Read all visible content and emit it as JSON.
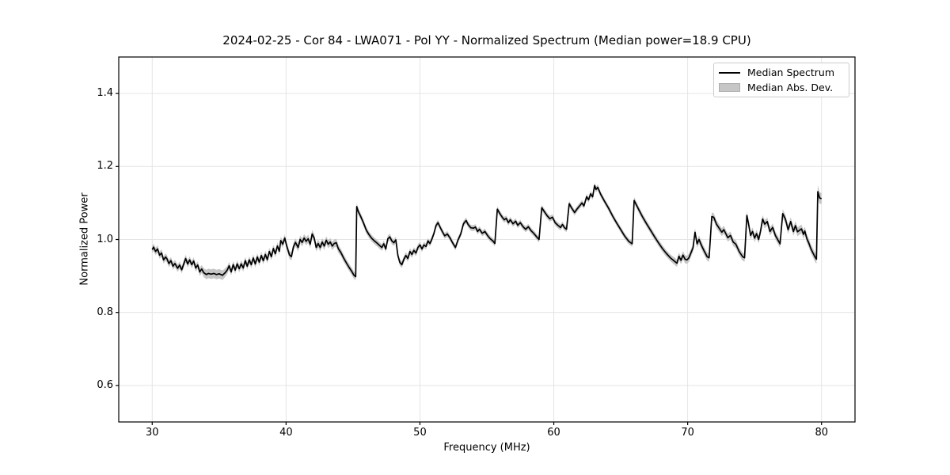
{
  "figure": {
    "title": "2024-02-25 - Cor 84 - LWA071 - Pol YY - Normalized Spectrum (Median power=18.9 CPU)",
    "background": "#ffffff"
  },
  "axes": {
    "xlabel": "Frequency (MHz)",
    "ylabel": "Normalized Power",
    "xticks": [
      30,
      40,
      50,
      60,
      70,
      80
    ],
    "xtick_labels": [
      "30",
      "40",
      "50",
      "60",
      "70",
      "80"
    ],
    "yticks": [
      0.6,
      0.8,
      1.0,
      1.2,
      1.4
    ],
    "ytick_labels": [
      "0.6",
      "0.8",
      "1.0",
      "1.2",
      "1.4"
    ],
    "xlim": [
      27.5,
      82.5
    ],
    "ylim": [
      0.5,
      1.5
    ],
    "grid": true,
    "grid_color": "#e4e4e4",
    "spine_color": "#000000"
  },
  "legend": {
    "position": "upper right",
    "entries": [
      {
        "label": "Median Spectrum",
        "type": "line",
        "color": "#000000"
      },
      {
        "label": "Median Abs. Dev.",
        "type": "patch",
        "color": "#c6c6c6"
      }
    ]
  },
  "chart_data": {
    "type": "line",
    "title": "2024-02-25 - Cor 84 - LWA071 - Pol YY - Normalized Spectrum (Median power=18.9 CPU)",
    "xlabel": "Frequency (MHz)",
    "ylabel": "Normalized Power",
    "xlim": [
      27.5,
      82.5
    ],
    "ylim": [
      0.5,
      1.5
    ],
    "grid": true,
    "legend_position": "upper right",
    "line_color": "#000000",
    "band_color": "#c6c6c6",
    "series_names": [
      "Median Spectrum",
      "Median Abs. Dev."
    ],
    "points_format": [
      "frequency_mhz",
      "normalized_power",
      "median_abs_dev"
    ],
    "points": [
      [
        30.0,
        0.972,
        0.01
      ],
      [
        30.1,
        0.979,
        0.01
      ],
      [
        30.25,
        0.967,
        0.01
      ],
      [
        30.4,
        0.974,
        0.01
      ],
      [
        30.55,
        0.957,
        0.01
      ],
      [
        30.7,
        0.963,
        0.01
      ],
      [
        30.85,
        0.944,
        0.01
      ],
      [
        31.0,
        0.952,
        0.01
      ],
      [
        31.1,
        0.947,
        0.01
      ],
      [
        31.25,
        0.934,
        0.01
      ],
      [
        31.4,
        0.942,
        0.01
      ],
      [
        31.55,
        0.927,
        0.01
      ],
      [
        31.7,
        0.934,
        0.01
      ],
      [
        31.9,
        0.921,
        0.01
      ],
      [
        32.05,
        0.93,
        0.01
      ],
      [
        32.2,
        0.917,
        0.01
      ],
      [
        32.35,
        0.932,
        0.01
      ],
      [
        32.5,
        0.948,
        0.01
      ],
      [
        32.65,
        0.933,
        0.01
      ],
      [
        32.8,
        0.944,
        0.01
      ],
      [
        32.95,
        0.931,
        0.01
      ],
      [
        33.1,
        0.941,
        0.01
      ],
      [
        33.25,
        0.922,
        0.01
      ],
      [
        33.4,
        0.93,
        0.01
      ],
      [
        33.55,
        0.911,
        0.011
      ],
      [
        33.7,
        0.919,
        0.011
      ],
      [
        33.85,
        0.909,
        0.012
      ],
      [
        34.05,
        0.904,
        0.013
      ],
      [
        34.2,
        0.907,
        0.013
      ],
      [
        34.4,
        0.905,
        0.013
      ],
      [
        34.6,
        0.907,
        0.013
      ],
      [
        34.8,
        0.904,
        0.013
      ],
      [
        35.0,
        0.906,
        0.013
      ],
      [
        35.25,
        0.902,
        0.013
      ],
      [
        35.45,
        0.909,
        0.012
      ],
      [
        35.6,
        0.916,
        0.011
      ],
      [
        35.75,
        0.928,
        0.01
      ],
      [
        35.9,
        0.911,
        0.01
      ],
      [
        36.05,
        0.931,
        0.01
      ],
      [
        36.2,
        0.916,
        0.01
      ],
      [
        36.35,
        0.933,
        0.01
      ],
      [
        36.5,
        0.92,
        0.01
      ],
      [
        36.65,
        0.933,
        0.01
      ],
      [
        36.8,
        0.922,
        0.01
      ],
      [
        36.95,
        0.942,
        0.01
      ],
      [
        37.1,
        0.927,
        0.01
      ],
      [
        37.25,
        0.944,
        0.01
      ],
      [
        37.4,
        0.931,
        0.01
      ],
      [
        37.55,
        0.949,
        0.01
      ],
      [
        37.7,
        0.933,
        0.01
      ],
      [
        37.85,
        0.952,
        0.01
      ],
      [
        38.0,
        0.938,
        0.01
      ],
      [
        38.15,
        0.956,
        0.01
      ],
      [
        38.3,
        0.942,
        0.01
      ],
      [
        38.45,
        0.959,
        0.01
      ],
      [
        38.6,
        0.945,
        0.01
      ],
      [
        38.75,
        0.967,
        0.01
      ],
      [
        38.9,
        0.953,
        0.01
      ],
      [
        39.05,
        0.975,
        0.01
      ],
      [
        39.2,
        0.961,
        0.01
      ],
      [
        39.35,
        0.982,
        0.01
      ],
      [
        39.5,
        0.968,
        0.01
      ],
      [
        39.6,
        0.997,
        0.01
      ],
      [
        39.75,
        0.987,
        0.01
      ],
      [
        39.9,
        1.004,
        0.01
      ],
      [
        40.05,
        0.982,
        0.01
      ],
      [
        40.25,
        0.958,
        0.011
      ],
      [
        40.4,
        0.953,
        0.011
      ],
      [
        40.55,
        0.98,
        0.011
      ],
      [
        40.7,
        0.992,
        0.011
      ],
      [
        40.9,
        0.978,
        0.011
      ],
      [
        41.05,
        1.0,
        0.011
      ],
      [
        41.2,
        0.992,
        0.011
      ],
      [
        41.35,
        1.004,
        0.011
      ],
      [
        41.5,
        0.995,
        0.011
      ],
      [
        41.65,
        1.002,
        0.011
      ],
      [
        41.8,
        0.987,
        0.011
      ],
      [
        41.95,
        1.015,
        0.011
      ],
      [
        42.1,
        1.004,
        0.011
      ],
      [
        42.25,
        0.978,
        0.011
      ],
      [
        42.4,
        0.989,
        0.011
      ],
      [
        42.55,
        0.978,
        0.011
      ],
      [
        42.7,
        0.993,
        0.011
      ],
      [
        42.85,
        0.982,
        0.011
      ],
      [
        43.0,
        0.998,
        0.011
      ],
      [
        43.15,
        0.987,
        0.011
      ],
      [
        43.3,
        0.993,
        0.011
      ],
      [
        43.45,
        0.982,
        0.011
      ],
      [
        43.6,
        0.989,
        0.011
      ],
      [
        43.75,
        0.991,
        0.011
      ],
      [
        43.9,
        0.975,
        0.011
      ],
      [
        44.1,
        0.964,
        0.01
      ],
      [
        44.3,
        0.949,
        0.01
      ],
      [
        44.5,
        0.936,
        0.01
      ],
      [
        44.7,
        0.924,
        0.01
      ],
      [
        44.9,
        0.913,
        0.01
      ],
      [
        45.05,
        0.903,
        0.01
      ],
      [
        45.2,
        0.898,
        0.01
      ],
      [
        45.28,
        1.09,
        0.009
      ],
      [
        45.4,
        1.076,
        0.009
      ],
      [
        45.55,
        1.065,
        0.009
      ],
      [
        45.7,
        1.053,
        0.009
      ],
      [
        45.85,
        1.039,
        0.009
      ],
      [
        46.0,
        1.025,
        0.009
      ],
      [
        46.2,
        1.013,
        0.009
      ],
      [
        46.4,
        1.003,
        0.009
      ],
      [
        46.6,
        0.996,
        0.009
      ],
      [
        46.8,
        0.99,
        0.009
      ],
      [
        47.0,
        0.983,
        0.009
      ],
      [
        47.15,
        0.978,
        0.009
      ],
      [
        47.3,
        0.988,
        0.009
      ],
      [
        47.45,
        0.974,
        0.009
      ],
      [
        47.6,
        1.002,
        0.009
      ],
      [
        47.75,
        1.007,
        0.009
      ],
      [
        47.9,
        0.996,
        0.009
      ],
      [
        48.05,
        0.991,
        0.009
      ],
      [
        48.2,
        0.999,
        0.009
      ],
      [
        48.35,
        0.956,
        0.009
      ],
      [
        48.5,
        0.937,
        0.009
      ],
      [
        48.65,
        0.931,
        0.009
      ],
      [
        48.8,
        0.946,
        0.009
      ],
      [
        48.95,
        0.956,
        0.009
      ],
      [
        49.1,
        0.948,
        0.009
      ],
      [
        49.25,
        0.967,
        0.009
      ],
      [
        49.4,
        0.959,
        0.009
      ],
      [
        49.55,
        0.97,
        0.009
      ],
      [
        49.7,
        0.963,
        0.009
      ],
      [
        49.85,
        0.978,
        0.009
      ],
      [
        50.0,
        0.985,
        0.008
      ],
      [
        50.15,
        0.974,
        0.008
      ],
      [
        50.3,
        0.985,
        0.008
      ],
      [
        50.45,
        0.981,
        0.008
      ],
      [
        50.6,
        0.996,
        0.008
      ],
      [
        50.75,
        0.989,
        0.008
      ],
      [
        50.9,
        1.002,
        0.008
      ],
      [
        51.05,
        1.017,
        0.008
      ],
      [
        51.2,
        1.038,
        0.008
      ],
      [
        51.35,
        1.046,
        0.008
      ],
      [
        51.5,
        1.034,
        0.008
      ],
      [
        51.65,
        1.023,
        0.008
      ],
      [
        51.85,
        1.01,
        0.008
      ],
      [
        52.05,
        1.015,
        0.008
      ],
      [
        52.25,
        1.004,
        0.008
      ],
      [
        52.45,
        0.99,
        0.008
      ],
      [
        52.65,
        0.978,
        0.008
      ],
      [
        52.85,
        0.999,
        0.008
      ],
      [
        53.05,
        1.015,
        0.008
      ],
      [
        53.25,
        1.043,
        0.008
      ],
      [
        53.45,
        1.052,
        0.008
      ],
      [
        53.6,
        1.041,
        0.008
      ],
      [
        53.8,
        1.032,
        0.008
      ],
      [
        54.0,
        1.031,
        0.008
      ],
      [
        54.15,
        1.034,
        0.008
      ],
      [
        54.3,
        1.022,
        0.008
      ],
      [
        54.45,
        1.028,
        0.008
      ],
      [
        54.65,
        1.017,
        0.008
      ],
      [
        54.85,
        1.022,
        0.008
      ],
      [
        55.05,
        1.011,
        0.008
      ],
      [
        55.25,
        1.002,
        0.008
      ],
      [
        55.45,
        0.996,
        0.008
      ],
      [
        55.6,
        0.989,
        0.008
      ],
      [
        55.78,
        1.083,
        0.008
      ],
      [
        55.95,
        1.072,
        0.008
      ],
      [
        56.15,
        1.061,
        0.008
      ],
      [
        56.3,
        1.054,
        0.008
      ],
      [
        56.45,
        1.058,
        0.008
      ],
      [
        56.6,
        1.046,
        0.008
      ],
      [
        56.75,
        1.054,
        0.008
      ],
      [
        56.95,
        1.043,
        0.008
      ],
      [
        57.15,
        1.05,
        0.008
      ],
      [
        57.3,
        1.039,
        0.008
      ],
      [
        57.5,
        1.046,
        0.008
      ],
      [
        57.7,
        1.035,
        0.008
      ],
      [
        57.9,
        1.028,
        0.008
      ],
      [
        58.1,
        1.035,
        0.008
      ],
      [
        58.3,
        1.024,
        0.008
      ],
      [
        58.5,
        1.017,
        0.008
      ],
      [
        58.7,
        1.008,
        0.008
      ],
      [
        58.9,
        1.0,
        0.008
      ],
      [
        59.1,
        1.087,
        0.008
      ],
      [
        59.3,
        1.076,
        0.008
      ],
      [
        59.5,
        1.065,
        0.008
      ],
      [
        59.7,
        1.057,
        0.008
      ],
      [
        59.9,
        1.061,
        0.008
      ],
      [
        60.1,
        1.046,
        0.008
      ],
      [
        60.3,
        1.039,
        0.008
      ],
      [
        60.5,
        1.033,
        0.008
      ],
      [
        60.65,
        1.041,
        0.008
      ],
      [
        60.8,
        1.032,
        0.008
      ],
      [
        60.95,
        1.028,
        0.008
      ],
      [
        61.15,
        1.098,
        0.008
      ],
      [
        61.35,
        1.085,
        0.008
      ],
      [
        61.55,
        1.074,
        0.008
      ],
      [
        61.75,
        1.084,
        0.008
      ],
      [
        61.95,
        1.093,
        0.008
      ],
      [
        62.1,
        1.1,
        0.008
      ],
      [
        62.25,
        1.092,
        0.008
      ],
      [
        62.45,
        1.117,
        0.008
      ],
      [
        62.6,
        1.109,
        0.008
      ],
      [
        62.75,
        1.125,
        0.008
      ],
      [
        62.9,
        1.117,
        0.008
      ],
      [
        63.05,
        1.148,
        0.008
      ],
      [
        63.15,
        1.137,
        0.008
      ],
      [
        63.28,
        1.143,
        0.008
      ],
      [
        63.5,
        1.124,
        0.008
      ],
      [
        63.8,
        1.104,
        0.008
      ],
      [
        64.1,
        1.085,
        0.008
      ],
      [
        64.4,
        1.064,
        0.008
      ],
      [
        64.7,
        1.045,
        0.008
      ],
      [
        65.0,
        1.027,
        0.008
      ],
      [
        65.3,
        1.009,
        0.008
      ],
      [
        65.6,
        0.995,
        0.008
      ],
      [
        65.85,
        0.988,
        0.008
      ],
      [
        66.0,
        1.107,
        0.009
      ],
      [
        66.3,
        1.085,
        0.009
      ],
      [
        66.6,
        1.064,
        0.009
      ],
      [
        66.9,
        1.045,
        0.009
      ],
      [
        67.2,
        1.027,
        0.009
      ],
      [
        67.5,
        1.009,
        0.009
      ],
      [
        67.8,
        0.992,
        0.009
      ],
      [
        68.1,
        0.976,
        0.009
      ],
      [
        68.4,
        0.962,
        0.009
      ],
      [
        68.7,
        0.95,
        0.009
      ],
      [
        69.0,
        0.941,
        0.01
      ],
      [
        69.2,
        0.935,
        0.01
      ],
      [
        69.35,
        0.954,
        0.01
      ],
      [
        69.5,
        0.943,
        0.011
      ],
      [
        69.65,
        0.957,
        0.011
      ],
      [
        69.8,
        0.946,
        0.011
      ],
      [
        69.95,
        0.944,
        0.011
      ],
      [
        70.1,
        0.95,
        0.011
      ],
      [
        70.25,
        0.964,
        0.011
      ],
      [
        70.4,
        0.977,
        0.011
      ],
      [
        70.55,
        1.02,
        0.011
      ],
      [
        70.7,
        0.988,
        0.011
      ],
      [
        70.85,
        1.0,
        0.011
      ],
      [
        71.05,
        0.982,
        0.011
      ],
      [
        71.25,
        0.967,
        0.011
      ],
      [
        71.45,
        0.953,
        0.011
      ],
      [
        71.6,
        0.95,
        0.011
      ],
      [
        71.8,
        1.063,
        0.011
      ],
      [
        71.95,
        1.061,
        0.011
      ],
      [
        72.15,
        1.042,
        0.011
      ],
      [
        72.35,
        1.031,
        0.011
      ],
      [
        72.55,
        1.02,
        0.011
      ],
      [
        72.7,
        1.027,
        0.011
      ],
      [
        72.85,
        1.016,
        0.011
      ],
      [
        73.0,
        1.005,
        0.011
      ],
      [
        73.2,
        1.011,
        0.011
      ],
      [
        73.4,
        0.993,
        0.011
      ],
      [
        73.6,
        0.987,
        0.011
      ],
      [
        73.85,
        0.967,
        0.011
      ],
      [
        74.1,
        0.953,
        0.011
      ],
      [
        74.25,
        0.95,
        0.011
      ],
      [
        74.42,
        1.066,
        0.011
      ],
      [
        74.55,
        1.042,
        0.011
      ],
      [
        74.7,
        1.011,
        0.011
      ],
      [
        74.85,
        1.022,
        0.011
      ],
      [
        75.0,
        1.004,
        0.011
      ],
      [
        75.15,
        1.016,
        0.011
      ],
      [
        75.3,
        1.0,
        0.011
      ],
      [
        75.45,
        1.024,
        0.011
      ],
      [
        75.6,
        1.056,
        0.011
      ],
      [
        75.75,
        1.042,
        0.011
      ],
      [
        75.95,
        1.049,
        0.011
      ],
      [
        76.15,
        1.022,
        0.011
      ],
      [
        76.35,
        1.033,
        0.011
      ],
      [
        76.55,
        1.011,
        0.011
      ],
      [
        76.75,
        0.998,
        0.011
      ],
      [
        76.9,
        0.988,
        0.011
      ],
      [
        77.1,
        1.071,
        0.012
      ],
      [
        77.3,
        1.056,
        0.012
      ],
      [
        77.5,
        1.027,
        0.012
      ],
      [
        77.7,
        1.049,
        0.012
      ],
      [
        77.9,
        1.022,
        0.012
      ],
      [
        78.05,
        1.038,
        0.012
      ],
      [
        78.2,
        1.021,
        0.012
      ],
      [
        78.35,
        1.025,
        0.012
      ],
      [
        78.5,
        1.029,
        0.012
      ],
      [
        78.65,
        1.014,
        0.012
      ],
      [
        78.75,
        1.023,
        0.012
      ],
      [
        78.9,
        1.003,
        0.012
      ],
      [
        79.05,
        0.99,
        0.012
      ],
      [
        79.2,
        0.975,
        0.012
      ],
      [
        79.35,
        0.964,
        0.012
      ],
      [
        79.5,
        0.953,
        0.013
      ],
      [
        79.62,
        0.946,
        0.013
      ],
      [
        79.72,
        1.131,
        0.018
      ],
      [
        79.85,
        1.114,
        0.016
      ],
      [
        80.0,
        1.112,
        0.015
      ]
    ]
  }
}
